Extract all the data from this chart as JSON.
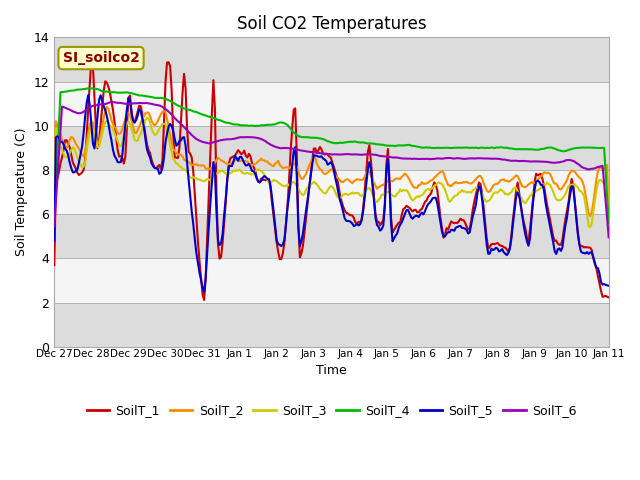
{
  "title": "Soil CO2 Temperatures",
  "xlabel": "Time",
  "ylabel": "Soil Temperature (C)",
  "ylim": [
    0,
    14
  ],
  "yticks": [
    0,
    2,
    4,
    6,
    8,
    10,
    12,
    14
  ],
  "xtick_labels": [
    "Dec 27",
    "Dec 28",
    "Dec 29",
    "Dec 30",
    "Dec 31",
    "Jan 1",
    "Jan 2",
    "Jan 3",
    "Jan 4",
    "Jan 5",
    "Jan 6",
    "Jan 7",
    "Jan 8",
    "Jan 9",
    "Jan 10",
    "Jan 11"
  ],
  "annotation_text": "SI_soilco2",
  "annotation_color": "#8B0000",
  "annotation_bg": "#FFFFCC",
  "annotation_border": "#999900",
  "series_colors": [
    "#CC0000",
    "#FF8C00",
    "#CCCC00",
    "#00BB00",
    "#0000CC",
    "#9900BB"
  ],
  "series_labels": [
    "SoilT_1",
    "SoilT_2",
    "SoilT_3",
    "SoilT_4",
    "SoilT_5",
    "SoilT_6"
  ],
  "plot_bg": "#DCDCDC",
  "band_color": "#F5F5F5",
  "line_width": 1.5,
  "figsize": [
    6.4,
    4.8
  ],
  "dpi": 100
}
